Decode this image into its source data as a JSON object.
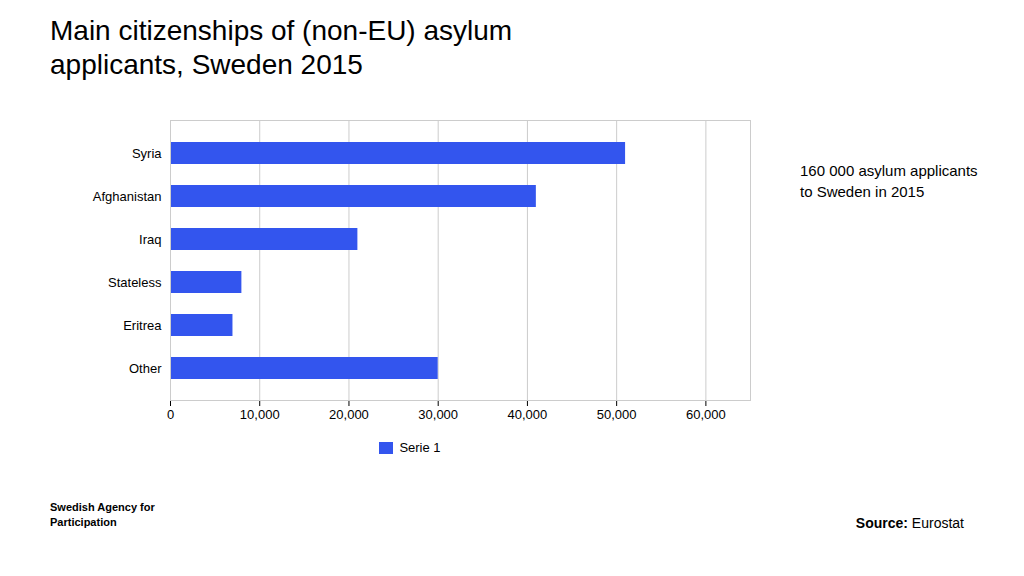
{
  "chart_data": {
    "type": "bar",
    "orientation": "horizontal",
    "title": "Main citizenships of (non-EU) asylum\napplicants, Sweden 2015",
    "categories": [
      "Syria",
      "Afghanistan",
      "Iraq",
      "Stateless",
      "Eritrea",
      "Other"
    ],
    "series": [
      {
        "name": "Serie 1",
        "color": "#3355ee",
        "values": [
          51000,
          41000,
          21000,
          8000,
          7000,
          30000
        ]
      }
    ],
    "xlim": [
      0,
      65000
    ],
    "xticks": [
      0,
      {
        "value": 10000,
        "label": "10,000"
      },
      {
        "value": 20000,
        "label": "20,000"
      },
      {
        "value": 30000,
        "label": "30,000"
      },
      {
        "value": 40000,
        "label": "40,000"
      },
      {
        "value": 50000,
        "label": "50,000"
      },
      {
        "value": 60000,
        "label": "60,000"
      }
    ],
    "grid": true,
    "legend": "bottom",
    "annotations": [
      "160 000 asylum applicants\nto Sweden in 2015",
      "Swedish Agency for\nParticipation",
      "Source: Eurostat"
    ]
  }
}
